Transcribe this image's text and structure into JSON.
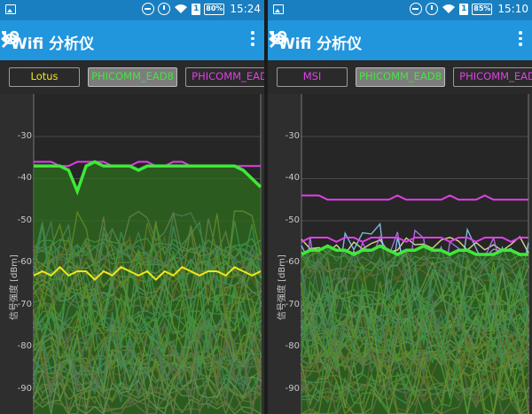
{
  "status_left": {
    "time": "15:24",
    "battery": "80%"
  },
  "status_right": {
    "time": "15:10",
    "battery": "85%"
  },
  "left": {
    "title": "Wifi 分析仪",
    "networks": [
      {
        "name": "Lotus",
        "color": "#f2e419",
        "selected": false
      },
      {
        "name": "PHICOMM_EAD8",
        "color": "#3fe83a",
        "selected": true
      },
      {
        "name": "PHICOMM_EAD",
        "color": "#e040e8",
        "selected": false
      }
    ],
    "y_ticks": [
      "-30",
      "-40",
      "-50",
      "-60",
      "-70",
      "-80",
      "-90"
    ],
    "y_axis_label": "信号强度 [dBm]"
  },
  "right": {
    "title": "Wifi 分析仪",
    "networks": [
      {
        "name": "MSI",
        "color": "#e040e8",
        "selected": false
      },
      {
        "name": "PHICOMM_EAD8",
        "color": "#3fe83a",
        "selected": true
      },
      {
        "name": "PHICOMM_EAD",
        "color": "#e040e8",
        "selected": false
      }
    ],
    "y_ticks": [
      "-30",
      "-40",
      "-50",
      "-60",
      "-70",
      "-80",
      "-90"
    ],
    "y_axis_label": "信号强度 [dBm]"
  },
  "chart_data": [
    {
      "type": "line",
      "ylabel": "信号强度 [dBm]",
      "ylim": [
        -95,
        -25
      ],
      "series": [
        {
          "name": "PHICOMM_EAD8",
          "color": "#3fe83a",
          "values": [
            -37,
            -37,
            -37,
            -37,
            -38,
            -43,
            -37,
            -36,
            -37,
            -37,
            -37,
            -37,
            -38,
            -37,
            -37,
            -37,
            -37,
            -37,
            -37,
            -37,
            -37,
            -37,
            -37,
            -37,
            -38,
            -40,
            -42
          ]
        },
        {
          "name": "PHICOMM_EAD",
          "color": "#e040e8",
          "values": [
            -36,
            -36,
            -36,
            -37,
            -37,
            -36,
            -36,
            -36,
            -36,
            -37,
            -37,
            -37,
            -36,
            -36,
            -37,
            -37,
            -36,
            -36,
            -37,
            -37,
            -37,
            -37,
            -37,
            -37,
            -37,
            -37,
            -37
          ]
        },
        {
          "name": "Lotus",
          "color": "#f2e419",
          "values": [
            -63,
            -62,
            -63,
            -61,
            -63,
            -62,
            -62,
            -64,
            -62,
            -63,
            -61,
            -62,
            -63,
            -62,
            -64,
            -62,
            -63,
            -61,
            -62,
            -63,
            -62,
            -62,
            -63,
            -61,
            -62,
            -63,
            -62
          ]
        }
      ]
    },
    {
      "type": "line",
      "ylabel": "信号强度 [dBm]",
      "ylim": [
        -95,
        -25
      ],
      "series": [
        {
          "name": "PHICOMM_EAD8",
          "color": "#3fe83a",
          "values": [
            -58,
            -57,
            -57,
            -56,
            -57,
            -57,
            -58,
            -57,
            -57,
            -56,
            -57,
            -58,
            -57,
            -57,
            -56,
            -57,
            -57,
            -58,
            -57,
            -57,
            -58,
            -58,
            -58,
            -57,
            -57,
            -58,
            -58
          ]
        },
        {
          "name": "MSI",
          "color": "#e040e8",
          "values": [
            -44,
            -44,
            -44,
            -45,
            -45,
            -45,
            -45,
            -45,
            -45,
            -45,
            -45,
            -44,
            -45,
            -45,
            -45,
            -45,
            -45,
            -44,
            -45,
            -45,
            -45,
            -44,
            -45,
            -45,
            -45,
            -45,
            -45
          ]
        },
        {
          "name": "PHICOMM_EAD",
          "color": "#e040e8",
          "values": [
            -55,
            -54,
            -54,
            -54,
            -55,
            -54,
            -54,
            -55,
            -54,
            -54,
            -54,
            -54,
            -55,
            -54,
            -54,
            -54,
            -54,
            -55,
            -54,
            -54,
            -55,
            -54,
            -54,
            -54,
            -55,
            -54,
            -54
          ]
        }
      ]
    }
  ]
}
